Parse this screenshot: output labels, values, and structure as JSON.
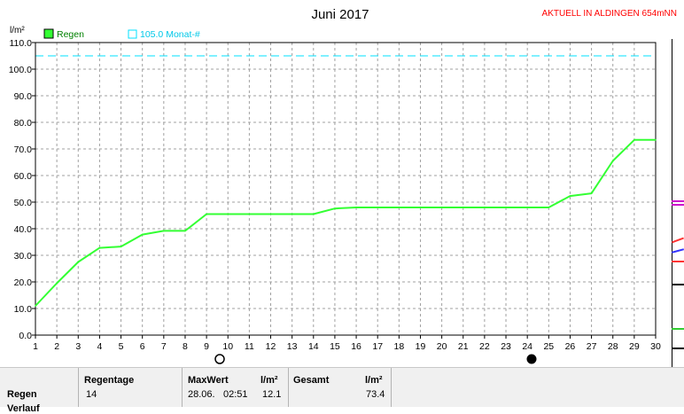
{
  "header": {
    "title": "Juni 2017",
    "station": "AKTUELL IN ALDINGEN 654mNN",
    "unit": "l/m²"
  },
  "legend": {
    "series_label": "Regen",
    "reference_label": "105.0 Monat-#"
  },
  "colors": {
    "series": "#33ff33",
    "reference": "#00e0ff",
    "grid": "#a0a0a0",
    "station": "#ff0000"
  },
  "icons": {
    "day10": "new-moon-outline-icon",
    "day24": "full-moon-filled-icon"
  },
  "chart_data": {
    "type": "area",
    "title": "Juni 2017",
    "xlabel": "",
    "ylabel": "l/m²",
    "xlim": [
      1,
      30
    ],
    "ylim": [
      0,
      110
    ],
    "grid": true,
    "legend_position": "top-left",
    "x_ticks": [
      1,
      2,
      3,
      4,
      5,
      6,
      7,
      8,
      9,
      10,
      11,
      12,
      13,
      14,
      15,
      16,
      17,
      18,
      19,
      20,
      21,
      22,
      23,
      24,
      25,
      26,
      27,
      28,
      29,
      30
    ],
    "y_ticks": [
      "0.0",
      "10.0",
      "20.0",
      "30.0",
      "40.0",
      "50.0",
      "60.0",
      "70.0",
      "80.0",
      "90.0",
      "100.0",
      "110.0"
    ],
    "reference_line": {
      "name": "105.0 Monat-#",
      "value": 105.0
    },
    "series": [
      {
        "name": "Regen",
        "points": [
          [
            1,
            11.0
          ],
          [
            2,
            19.5
          ],
          [
            3,
            27.5
          ],
          [
            4,
            32.8
          ],
          [
            5,
            33.3
          ],
          [
            6,
            37.8
          ],
          [
            7,
            39.2
          ],
          [
            8,
            39.2
          ],
          [
            9,
            45.5
          ],
          [
            10,
            45.5
          ],
          [
            11,
            45.5
          ],
          [
            12,
            45.5
          ],
          [
            13,
            45.5
          ],
          [
            14,
            45.5
          ],
          [
            15,
            47.6
          ],
          [
            16,
            48.0
          ],
          [
            17,
            48.0
          ],
          [
            18,
            48.0
          ],
          [
            19,
            48.0
          ],
          [
            20,
            48.0
          ],
          [
            21,
            48.0
          ],
          [
            22,
            48.0
          ],
          [
            23,
            48.0
          ],
          [
            24,
            48.0
          ],
          [
            25,
            48.0
          ],
          [
            26,
            52.3
          ],
          [
            27,
            53.3
          ],
          [
            28,
            65.5
          ],
          [
            29,
            73.4
          ],
          [
            30,
            73.4
          ]
        ]
      }
    ]
  },
  "stats": {
    "row_label": "Regen",
    "row_label_2": "Verlauf",
    "rain_days_header": "Regentage",
    "rain_days_value": "14",
    "max_header": "MaxWert",
    "max_unit": "l/m²",
    "max_date": "28.06.",
    "max_time": "02:51",
    "max_value": "12.1",
    "total_header": "Gesamt",
    "total_unit": "l/m²",
    "total_value": "73.4"
  }
}
